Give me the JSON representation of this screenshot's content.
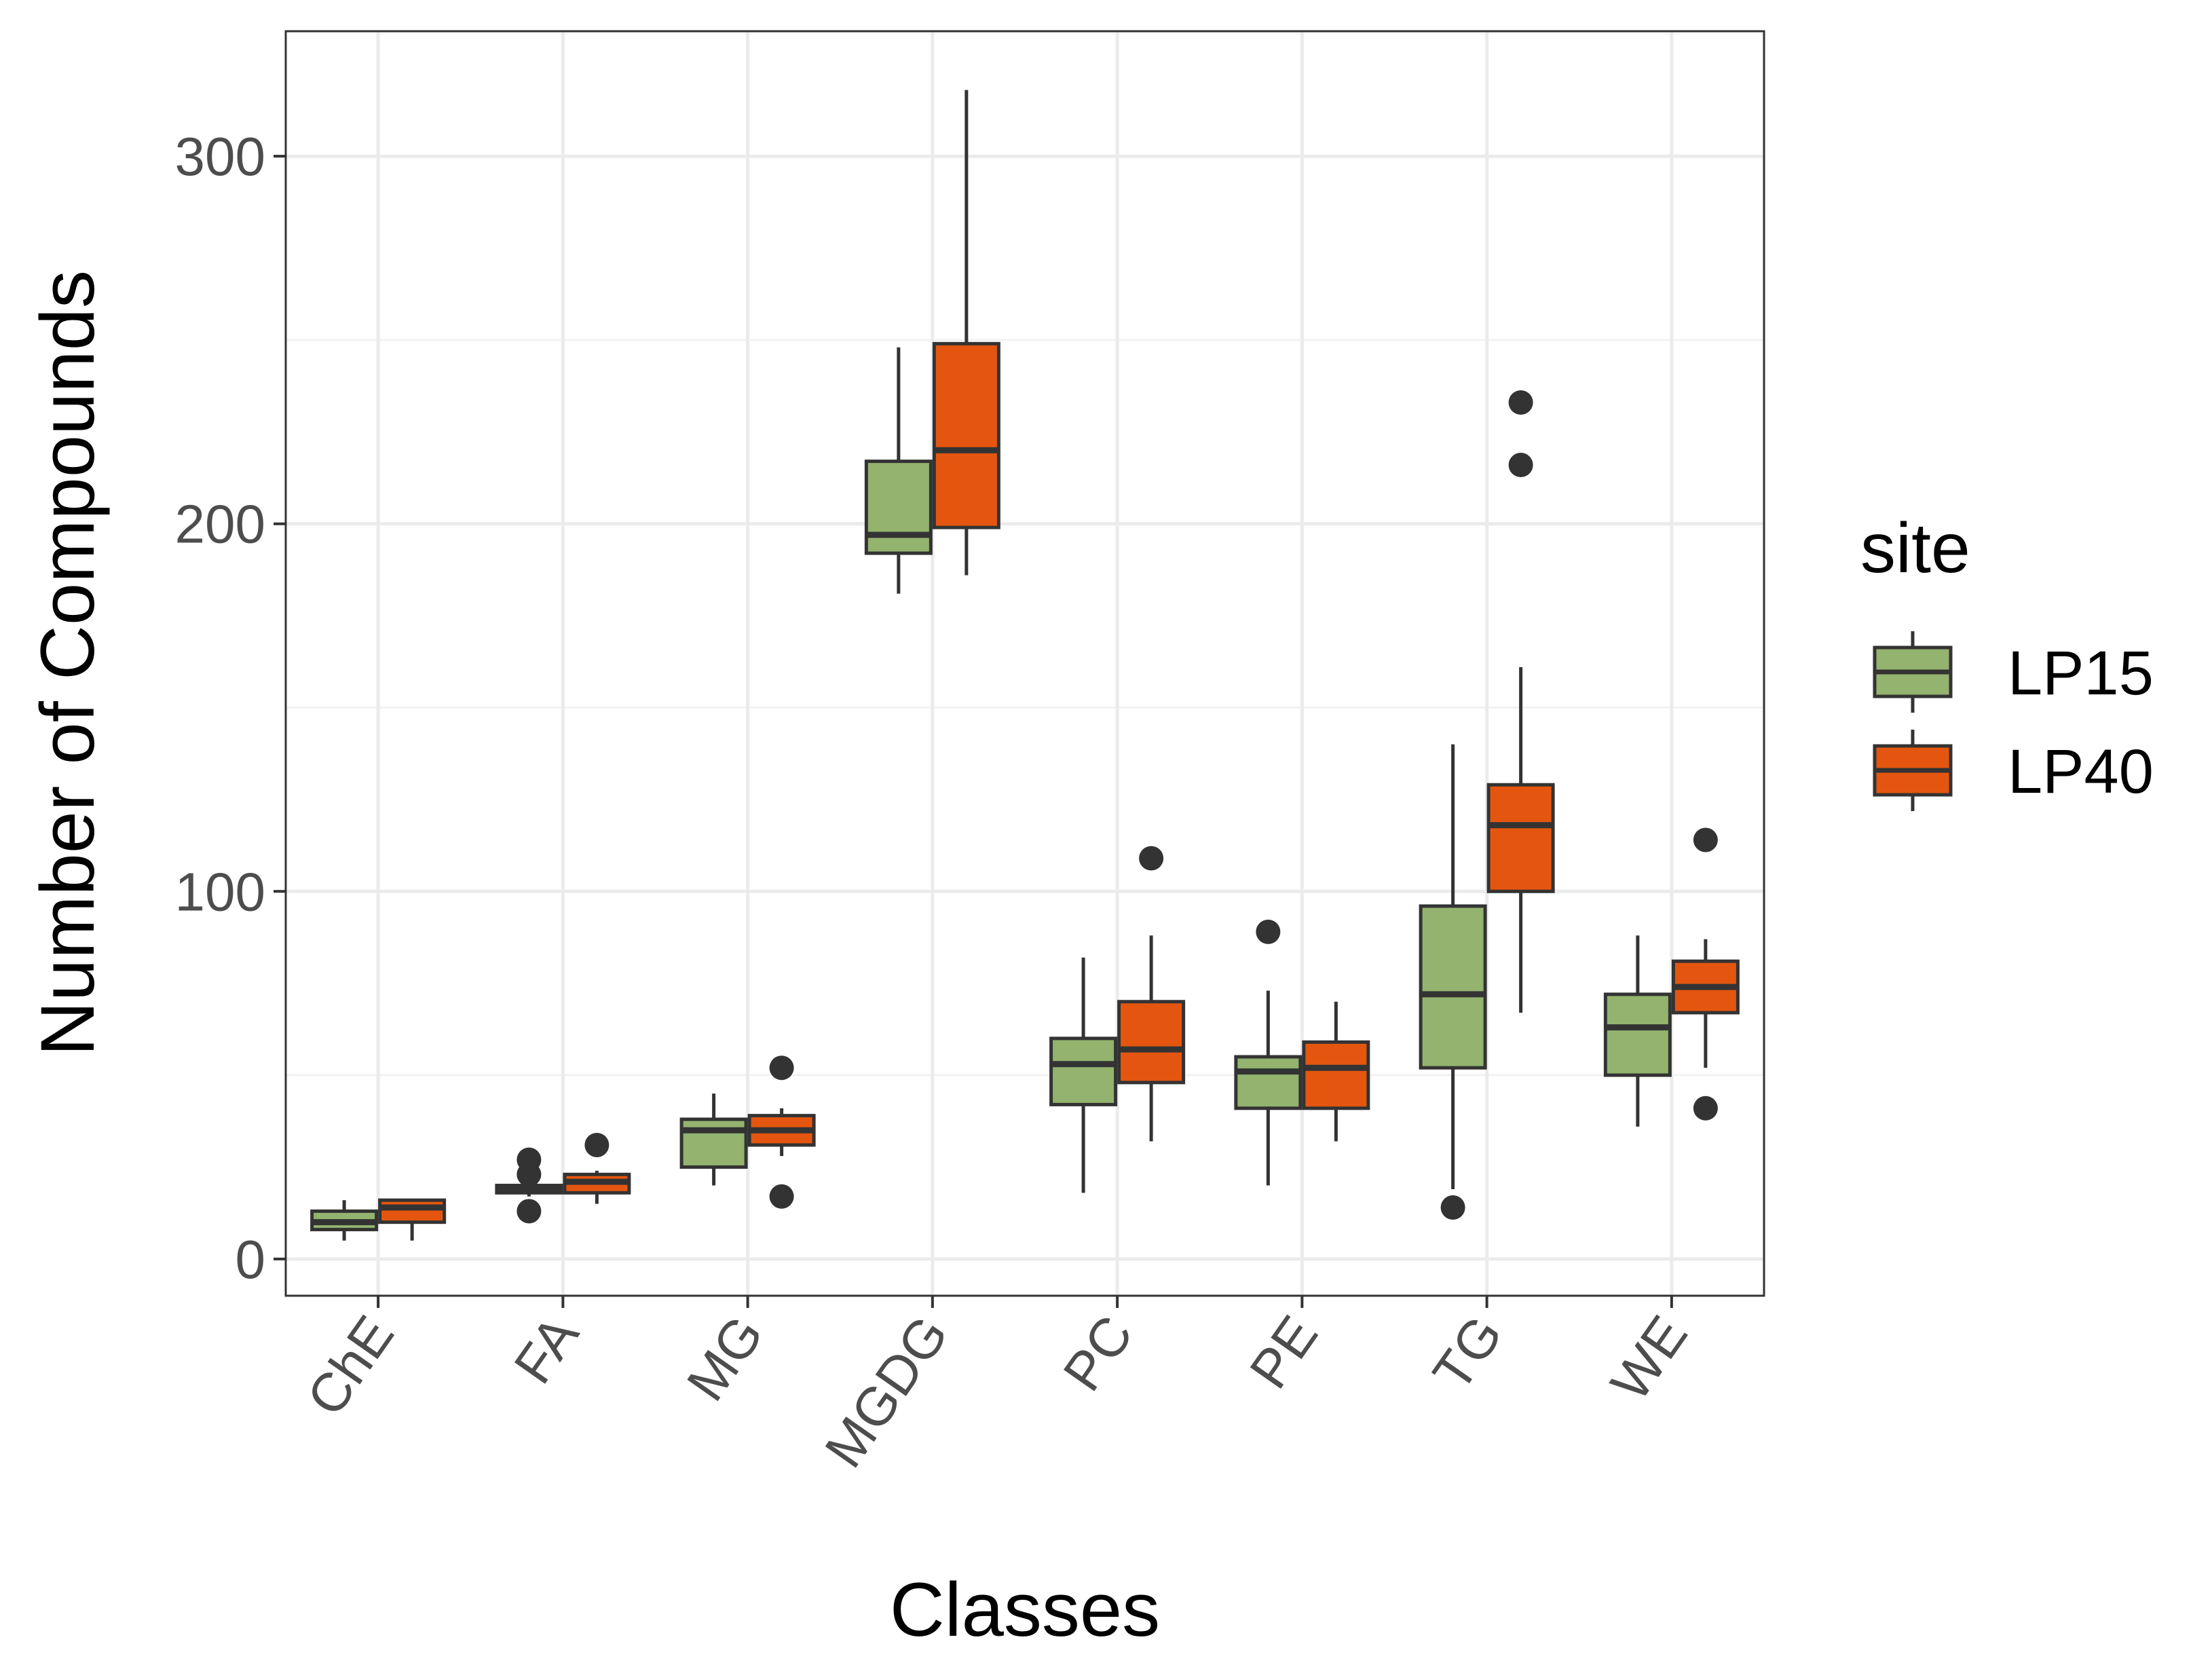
{
  "chart_data": {
    "type": "boxplot",
    "xlabel": "Classes",
    "ylabel": "Number of Compounds",
    "ylim": [
      -10,
      334
    ],
    "yticks": [
      0,
      100,
      200,
      300
    ],
    "grid": true,
    "legend": {
      "title": "site",
      "position": "right"
    },
    "categories": [
      "ChE",
      "FA",
      "MG",
      "MGDG",
      "PC",
      "PE",
      "TG",
      "WE"
    ],
    "series": [
      {
        "name": "LP15",
        "color": "#93b36e",
        "boxes": [
          {
            "min": 5,
            "q1": 8,
            "median": 10,
            "q3": 13,
            "max": 16,
            "outliers": []
          },
          {
            "min": 17,
            "q1": 18,
            "median": 19,
            "q3": 20,
            "max": 21,
            "outliers": [
              13,
              23,
              27
            ]
          },
          {
            "min": 20,
            "q1": 25,
            "median": 35,
            "q3": 38,
            "max": 45,
            "outliers": []
          },
          {
            "min": 181,
            "q1": 192,
            "median": 197,
            "q3": 217,
            "max": 248,
            "outliers": []
          },
          {
            "min": 18,
            "q1": 42,
            "median": 53,
            "q3": 60,
            "max": 82,
            "outliers": []
          },
          {
            "min": 20,
            "q1": 41,
            "median": 51,
            "q3": 55,
            "max": 73,
            "outliers": [
              89
            ]
          },
          {
            "min": 19,
            "q1": 52,
            "median": 72,
            "q3": 96,
            "max": 140,
            "outliers": [
              14
            ]
          },
          {
            "min": 36,
            "q1": 50,
            "median": 63,
            "q3": 72,
            "max": 88,
            "outliers": []
          }
        ]
      },
      {
        "name": "LP40",
        "color": "#e4560f",
        "boxes": [
          {
            "min": 5,
            "q1": 10,
            "median": 14,
            "q3": 16,
            "max": 16,
            "outliers": []
          },
          {
            "min": 15,
            "q1": 18,
            "median": 21,
            "q3": 23,
            "max": 24,
            "outliers": [
              31
            ]
          },
          {
            "min": 28,
            "q1": 31,
            "median": 35,
            "q3": 39,
            "max": 41,
            "outliers": [
              17,
              52
            ]
          },
          {
            "min": 186,
            "q1": 199,
            "median": 220,
            "q3": 249,
            "max": 318,
            "outliers": []
          },
          {
            "min": 32,
            "q1": 48,
            "median": 57,
            "q3": 70,
            "max": 88,
            "outliers": [
              109
            ]
          },
          {
            "min": 32,
            "q1": 41,
            "median": 52,
            "q3": 59,
            "max": 70,
            "outliers": []
          },
          {
            "min": 67,
            "q1": 100,
            "median": 118,
            "q3": 129,
            "max": 161,
            "outliers": [
              216,
              233
            ]
          },
          {
            "min": 52,
            "q1": 67,
            "median": 74,
            "q3": 81,
            "max": 87,
            "outliers": [
              41,
              114
            ]
          }
        ]
      }
    ]
  }
}
